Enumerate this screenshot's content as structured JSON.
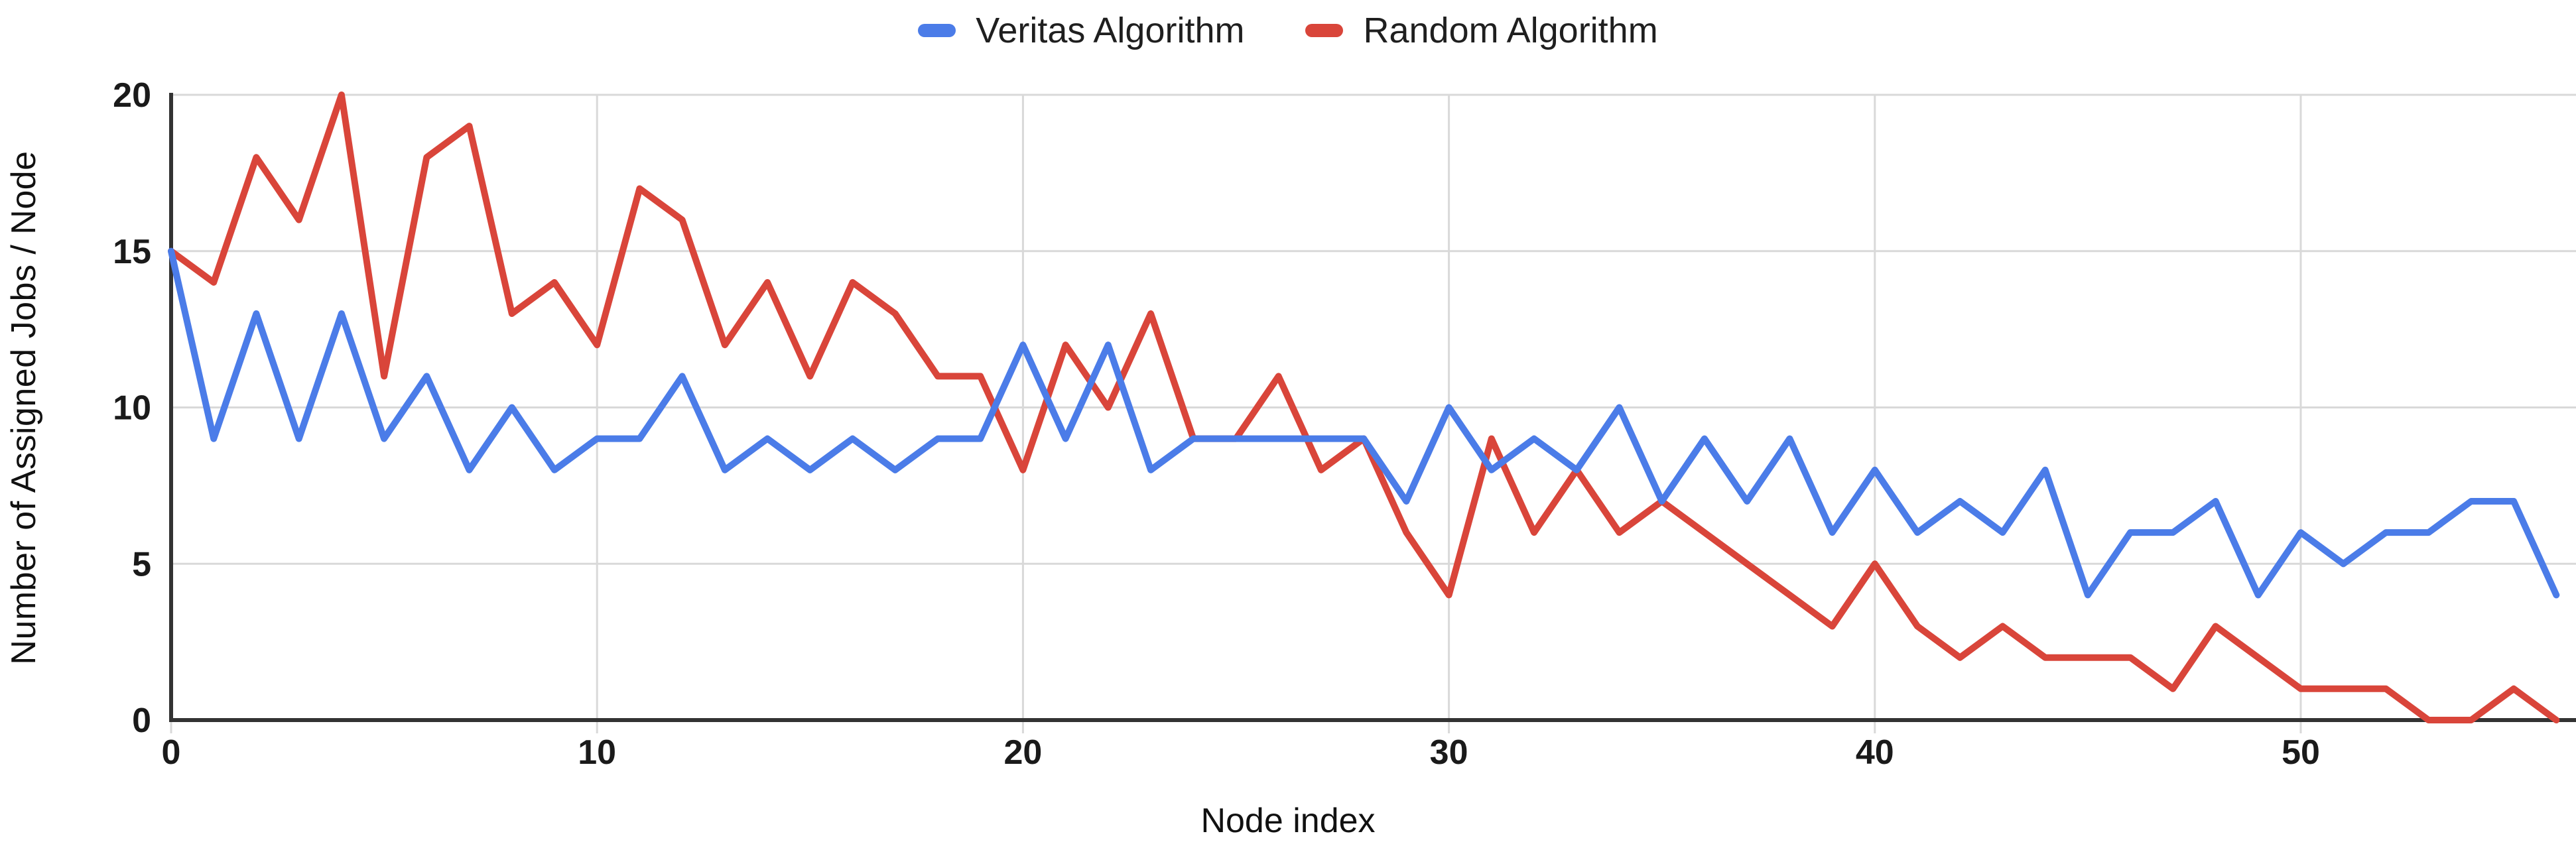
{
  "legend": {
    "items": [
      {
        "label": "Veritas Algorithm",
        "color": "#4b7ce8"
      },
      {
        "label": "Random Algorithm",
        "color": "#d9453a"
      }
    ]
  },
  "chart_data": {
    "type": "line",
    "title": "",
    "xlabel": "Node index",
    "ylabel": "Number of Assigned Jobs / Node",
    "x": [
      0,
      1,
      2,
      3,
      4,
      5,
      6,
      7,
      8,
      9,
      10,
      11,
      12,
      13,
      14,
      15,
      16,
      17,
      18,
      19,
      20,
      21,
      22,
      23,
      24,
      25,
      26,
      27,
      28,
      29,
      30,
      31,
      32,
      33,
      34,
      35,
      36,
      37,
      38,
      39,
      40,
      41,
      42,
      43,
      44,
      45,
      46,
      47,
      48,
      49,
      50,
      51,
      52,
      53,
      54,
      55,
      56
    ],
    "series": [
      {
        "name": "Veritas Algorithm",
        "color": "#4b7ce8",
        "values": [
          15,
          9,
          13,
          9,
          13,
          9,
          11,
          8,
          10,
          8,
          9,
          9,
          11,
          8,
          9,
          8,
          9,
          8,
          9,
          9,
          12,
          9,
          12,
          8,
          9,
          9,
          9,
          9,
          9,
          7,
          10,
          8,
          9,
          8,
          10,
          7,
          9,
          7,
          9,
          6,
          8,
          6,
          7,
          6,
          8,
          4,
          6,
          6,
          7,
          4,
          6,
          5,
          6,
          6,
          7,
          7,
          4
        ]
      },
      {
        "name": "Random Algorithm",
        "color": "#d9453a",
        "values": [
          15,
          14,
          18,
          16,
          20,
          11,
          18,
          19,
          13,
          14,
          12,
          17,
          16,
          12,
          14,
          11,
          14,
          13,
          11,
          11,
          8,
          12,
          10,
          13,
          9,
          9,
          11,
          8,
          9,
          6,
          4,
          9,
          6,
          8,
          6,
          7,
          6,
          5,
          4,
          3,
          5,
          3,
          2,
          3,
          2,
          2,
          2,
          1,
          3,
          2,
          1,
          1,
          1,
          0,
          0,
          1,
          0
        ]
      }
    ],
    "xlim": [
      0,
      56.4
    ],
    "ylim": [
      0,
      20
    ],
    "x_ticks": [
      0,
      10,
      20,
      30,
      40,
      50
    ],
    "y_ticks": [
      0,
      5,
      10,
      15,
      20
    ],
    "grid": true,
    "legend_position": "top",
    "colors": {
      "gridline": "#d9d9d9",
      "axis": "#333333",
      "tick_text": "#1a1a1a",
      "background": "#ffffff"
    }
  }
}
